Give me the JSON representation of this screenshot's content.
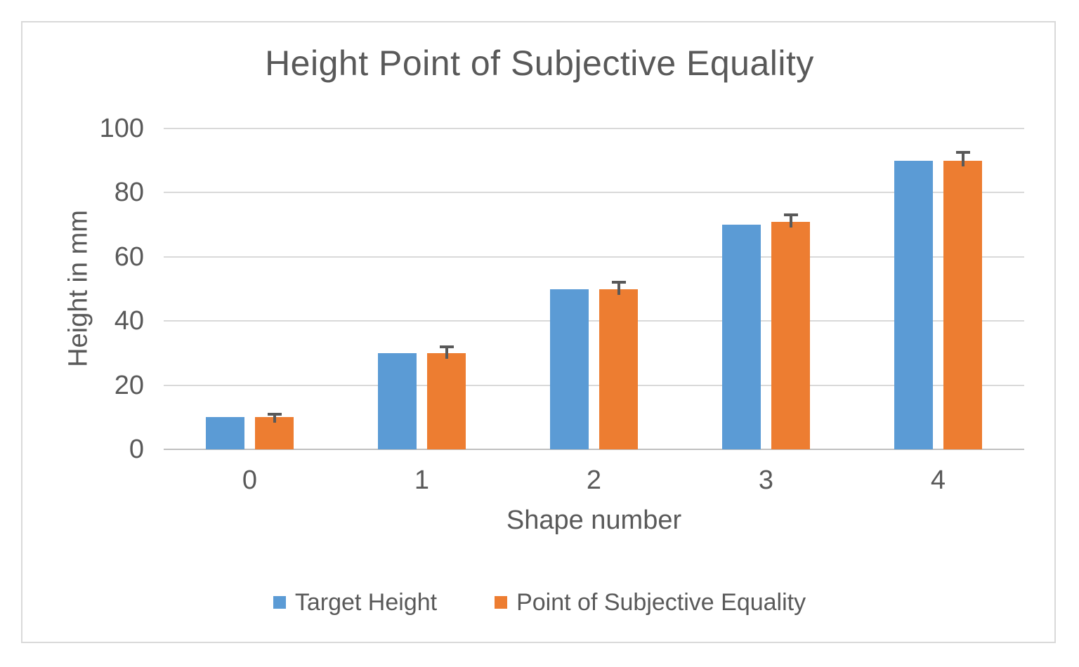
{
  "chart_data": {
    "type": "bar",
    "title": "Height Point of Subjective Equality",
    "xlabel": "Shape number",
    "ylabel": "Height in mm",
    "categories": [
      "0",
      "1",
      "2",
      "3",
      "4"
    ],
    "series": [
      {
        "name": "Target Height",
        "color": "#5B9BD5",
        "values": [
          10,
          30,
          50,
          70,
          90
        ]
      },
      {
        "name": "Point of Subjective Equality",
        "color": "#ED7D31",
        "values": [
          10,
          30,
          50,
          71,
          90
        ],
        "error_plus": [
          1,
          2,
          2,
          2,
          2.5
        ]
      }
    ],
    "ylim": [
      0,
      100
    ],
    "yticks": [
      0,
      20,
      40,
      60,
      80,
      100
    ],
    "grid": true,
    "legend_position": "bottom",
    "colors": {
      "bar_blue": "#5B9BD5",
      "bar_orange": "#ED7D31",
      "error_bar": "#595959",
      "gridline": "#D9D9D9",
      "axis_line": "#BFBFBF",
      "text": "#595959",
      "frame_border": "#D9D9D9",
      "background": "#FFFFFF"
    }
  }
}
